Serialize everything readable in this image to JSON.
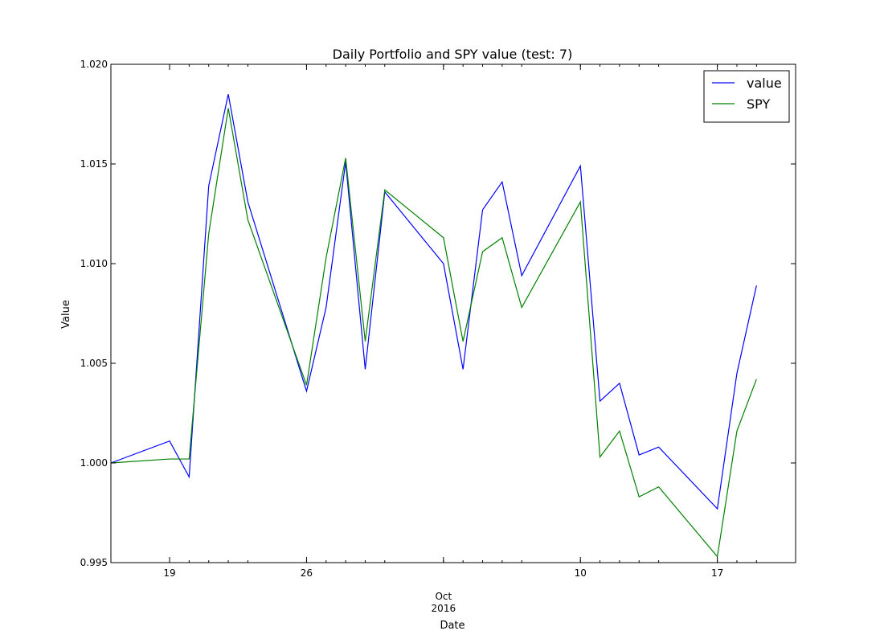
{
  "chart_data": {
    "type": "line",
    "title": "Daily Portfolio and SPY value (test: 7)",
    "xlabel": "Date",
    "ylabel": "Value",
    "ylim": [
      0.995,
      1.02
    ],
    "yticks": [
      "0.995",
      "1.000",
      "1.005",
      "1.010",
      "1.015",
      "1.020"
    ],
    "xlim": [
      "2016-09-16",
      "2016-10-21"
    ],
    "xticks": [
      {
        "date": "2016-09-19",
        "label": "19"
      },
      {
        "date": "2016-09-26",
        "label": "26"
      },
      {
        "date": "2016-10-03",
        "label": "Oct",
        "sublabel": "2016"
      },
      {
        "date": "2016-10-10",
        "label": "10"
      },
      {
        "date": "2016-10-17",
        "label": "17"
      }
    ],
    "legend_position": "top-right",
    "grid": false,
    "x": [
      "2016-09-16",
      "2016-09-19",
      "2016-09-20",
      "2016-09-21",
      "2016-09-22",
      "2016-09-23",
      "2016-09-26",
      "2016-09-27",
      "2016-09-28",
      "2016-09-29",
      "2016-09-30",
      "2016-10-03",
      "2016-10-04",
      "2016-10-05",
      "2016-10-06",
      "2016-10-07",
      "2016-10-10",
      "2016-10-11",
      "2016-10-12",
      "2016-10-13",
      "2016-10-14",
      "2016-10-17",
      "2016-10-18",
      "2016-10-19"
    ],
    "series": [
      {
        "name": "value",
        "color": "#0000ff",
        "values": [
          1.0,
          1.0011,
          0.9993,
          1.0139,
          1.0185,
          1.0131,
          1.0036,
          1.0078,
          1.0151,
          1.0047,
          1.0136,
          1.01,
          1.0047,
          1.0127,
          1.0141,
          1.0094,
          1.0149,
          1.0031,
          1.004,
          1.0004,
          1.0008,
          0.9977,
          1.0045,
          1.0089
        ]
      },
      {
        "name": "SPY",
        "color": "#008000",
        "values": [
          1.0,
          1.0002,
          1.0002,
          1.0115,
          1.0178,
          1.0122,
          1.0039,
          1.0103,
          1.0153,
          1.0061,
          1.0137,
          1.0113,
          1.0061,
          1.0106,
          1.0113,
          1.0078,
          1.0131,
          1.0003,
          1.0016,
          0.9983,
          0.9988,
          0.9953,
          1.0016,
          1.0042
        ]
      }
    ]
  }
}
